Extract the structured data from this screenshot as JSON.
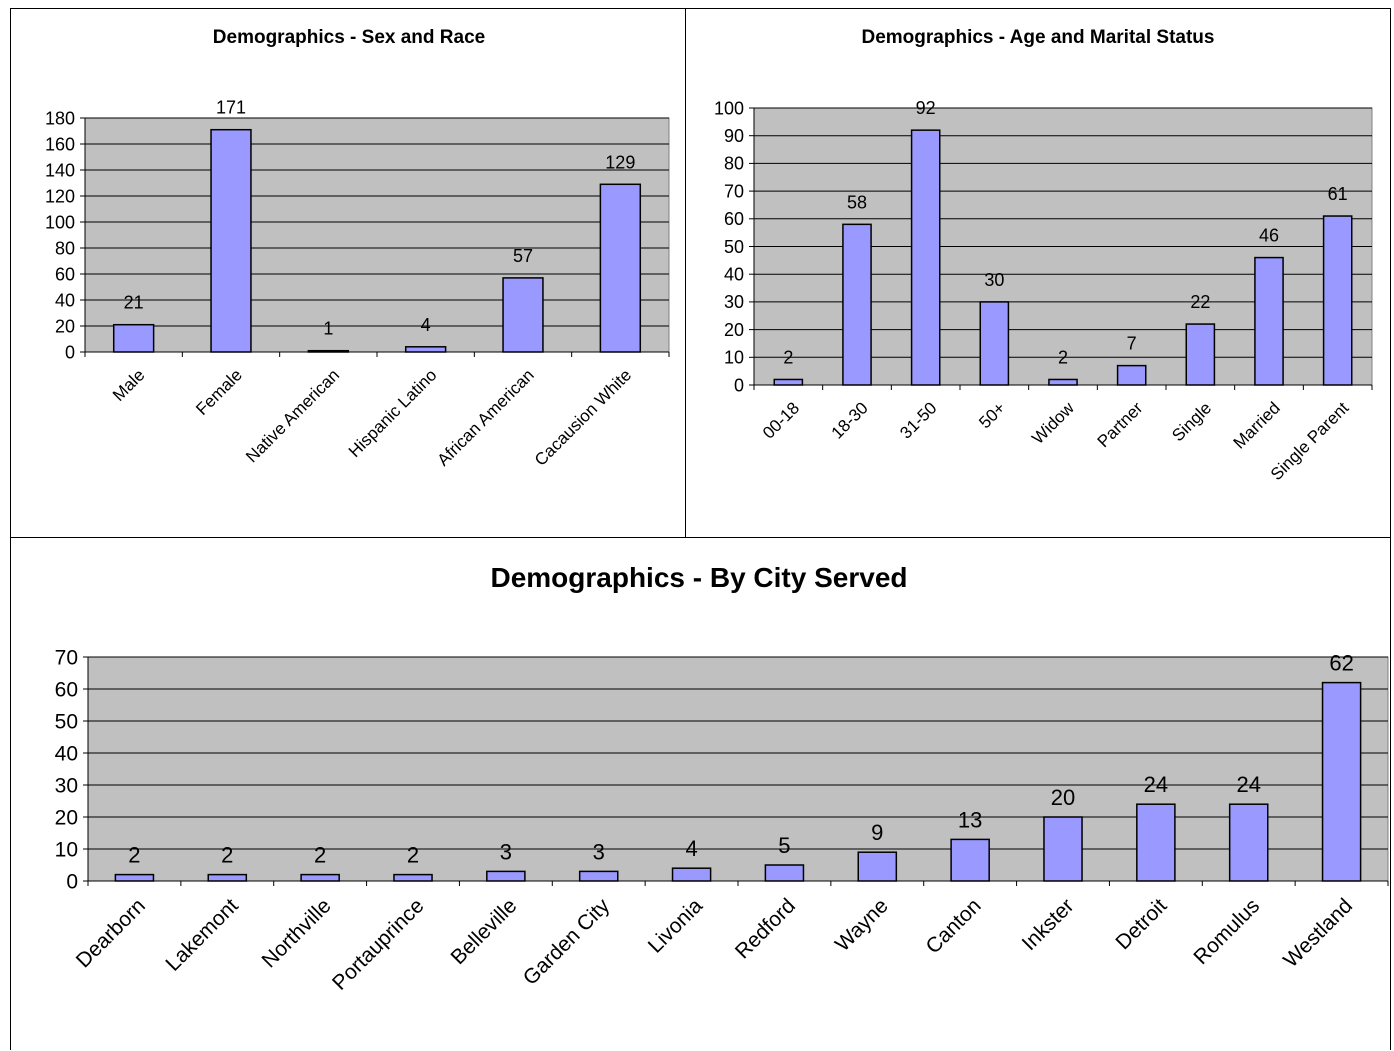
{
  "chart_data": [
    {
      "id": "sex_race",
      "type": "bar",
      "title": "Demographics - Sex and Race",
      "categories": [
        "Male",
        "Female",
        "Native American",
        "Hispanic Latino",
        "African American",
        "Cacausion White"
      ],
      "values": [
        21,
        171,
        1,
        4,
        57,
        129
      ],
      "ylim": [
        0,
        180
      ],
      "yticks": [
        0,
        20,
        40,
        60,
        80,
        100,
        120,
        140,
        160,
        180
      ],
      "grid": true,
      "legend": "none",
      "bar_color": "#9999FF",
      "plot_bg": "#C0C0C0"
    },
    {
      "id": "age_marital",
      "type": "bar",
      "title": "Demographics - Age and Marital Status",
      "categories": [
        "00-18",
        "18-30",
        "31-50",
        "50+",
        "Widow",
        "Partner",
        "Single",
        "Married",
        "Single Parent"
      ],
      "values": [
        2,
        58,
        92,
        30,
        2,
        7,
        22,
        46,
        61
      ],
      "ylim": [
        0,
        100
      ],
      "yticks": [
        0,
        10,
        20,
        30,
        40,
        50,
        60,
        70,
        80,
        90,
        100
      ],
      "grid": true,
      "legend": "none",
      "bar_color": "#9999FF",
      "plot_bg": "#C0C0C0"
    },
    {
      "id": "city",
      "type": "bar",
      "title": "Demographics - By City Served",
      "categories": [
        "Dearborn",
        "Lakemont",
        "Northville",
        "Portauprince",
        "Belleville",
        "Garden City",
        "Livonia",
        "Redford",
        "Wayne",
        "Canton",
        "Inkster",
        "Detroit",
        "Romulus",
        "Westland"
      ],
      "values": [
        2,
        2,
        2,
        2,
        3,
        3,
        4,
        5,
        9,
        13,
        20,
        24,
        24,
        62
      ],
      "ylim": [
        0,
        70
      ],
      "yticks": [
        0,
        10,
        20,
        30,
        40,
        50,
        60,
        70
      ],
      "grid": true,
      "legend": "none",
      "bar_color": "#9999FF",
      "plot_bg": "#C0C0C0"
    }
  ]
}
